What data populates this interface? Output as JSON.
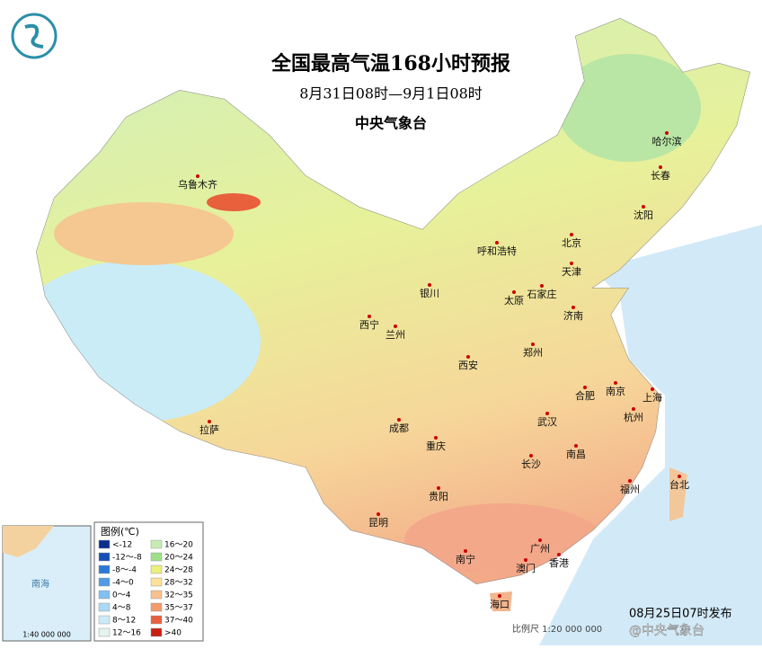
{
  "title": "全国最高气温168小时预报",
  "subtitle": "8月31日08时—9月1日08时",
  "agency": "中央气象台",
  "cities": [
    "乌鲁木齐",
    "哈尔滨",
    "长春",
    "沈阳",
    "北京",
    "呼和浩特",
    "天津",
    "银川",
    "太原",
    "石家庄",
    "济南",
    "西宁",
    "兰州",
    "西安",
    "郑州",
    "合肥",
    "南京",
    "上海",
    "拉萨",
    "成都",
    "武汉",
    "杭州",
    "重庆",
    "南昌",
    "长沙",
    "台北",
    "福州",
    "贵阳",
    "昆明",
    "南宁",
    "广州",
    "澳门",
    "香港",
    "海口"
  ],
  "legend": {
    "title": "图例(℃)",
    "items": [
      {
        "label": "<-12",
        "color": "#0b2d8c"
      },
      {
        "label": "-12～-8",
        "color": "#1650b4"
      },
      {
        "label": "-8～-4",
        "color": "#2a78d6"
      },
      {
        "label": "-4～0",
        "color": "#4f9be6"
      },
      {
        "label": "0～4",
        "color": "#82c0f0"
      },
      {
        "label": "4～8",
        "color": "#abd9f7"
      },
      {
        "label": "8～12",
        "color": "#cdeaf9"
      },
      {
        "label": "12～16",
        "color": "#e4f4f0"
      },
      {
        "label": "16～20",
        "color": "#c6ecb4"
      },
      {
        "label": "20～24",
        "color": "#9ee08a"
      },
      {
        "label": "24～28",
        "color": "#eaf07a"
      },
      {
        "label": "28～32",
        "color": "#fbe29a"
      },
      {
        "label": "32～35",
        "color": "#f8c08c"
      },
      {
        "label": "35～37",
        "color": "#f39a6c"
      },
      {
        "label": "37～40",
        "color": "#e8603c"
      },
      {
        "label": ">40",
        "color": "#c81e14"
      }
    ]
  },
  "inset": {
    "label": "南海",
    "scale": "1:40 000 000"
  },
  "scale": "比例尺 1:20 000 000",
  "publish": "08月25日07时发布",
  "watermark": "@中央气象台"
}
